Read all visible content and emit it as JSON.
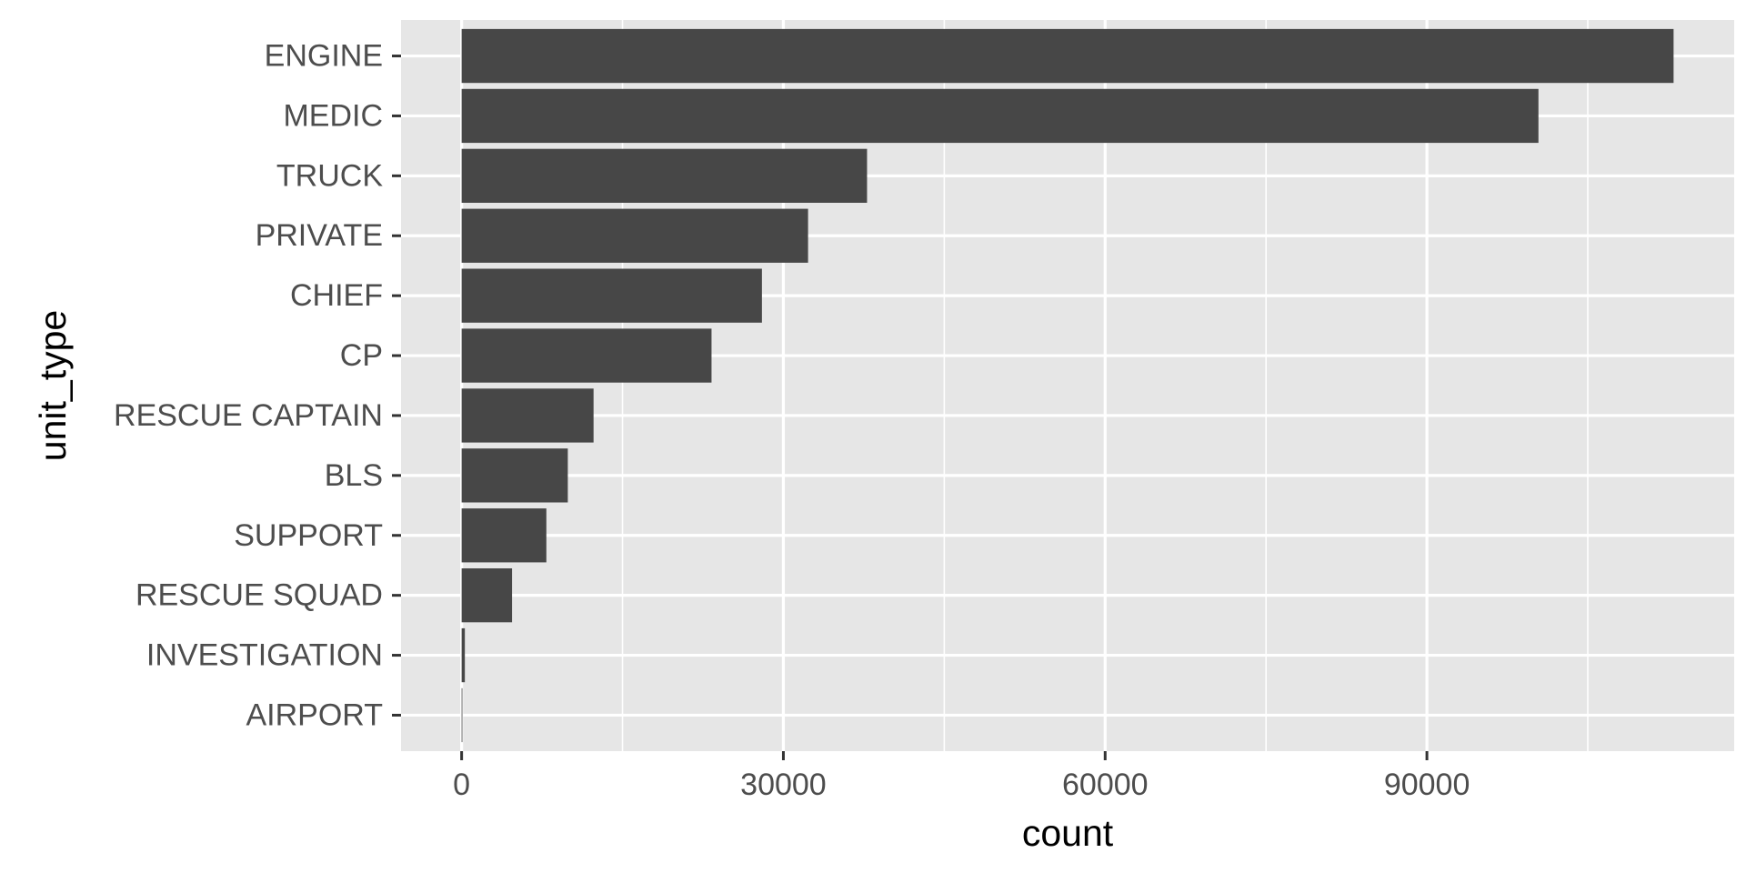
{
  "chart_data": {
    "type": "bar",
    "orientation": "horizontal",
    "title": "",
    "xlabel": "count",
    "ylabel": "unit_type",
    "categories": [
      "ENGINE",
      "MEDIC",
      "TRUCK",
      "PRIVATE",
      "CHIEF",
      "CP",
      "RESCUE CAPTAIN",
      "BLS",
      "SUPPORT",
      "RESCUE SQUAD",
      "INVESTIGATION",
      "AIRPORT"
    ],
    "values": [
      113000,
      100400,
      37800,
      32300,
      28000,
      23300,
      12300,
      9900,
      7900,
      4700,
      300,
      20
    ],
    "xlim": [
      -5650,
      118650
    ],
    "xticks": [
      0,
      30000,
      60000,
      90000
    ],
    "xtick_labels": [
      "0",
      "30000",
      "60000",
      "90000"
    ],
    "grid": true,
    "legend": "none",
    "colors": {
      "panel": "#e6e6e6",
      "grid": "#ffffff",
      "bar": "#474747",
      "tick_text": "#4d4d4d",
      "axis_title": "#000000",
      "tick_mark": "#333333"
    }
  }
}
